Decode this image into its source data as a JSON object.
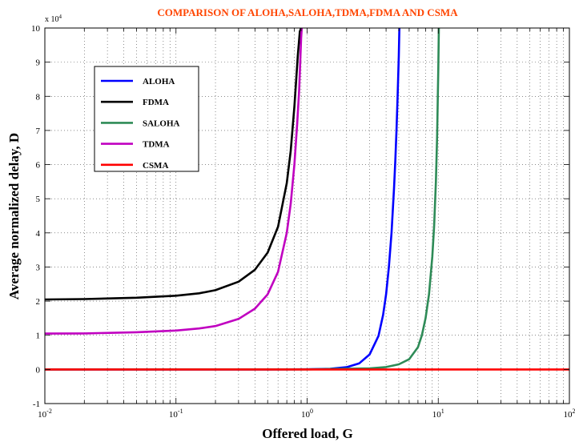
{
  "chart_data": {
    "type": "line",
    "title": "COMPARISON OF ALOHA,SALOHA,TDMA,FDMA AND CSMA",
    "title_color": "#ff4500",
    "xlabel": "Offered load, G",
    "ylabel": "Average normalized delay, D",
    "x_scale": "log",
    "xlim": [
      0.01,
      100
    ],
    "ylim": [
      -10000,
      100000
    ],
    "y_multiplier_label": "x 10",
    "y_multiplier_exp": "4",
    "grid": true,
    "grid_style": "dotted",
    "legend_position": "top-left",
    "x_ticks": [
      {
        "value": 0.01,
        "base": "10",
        "exp": "-2"
      },
      {
        "value": 0.1,
        "base": "10",
        "exp": "-1"
      },
      {
        "value": 1,
        "base": "10",
        "exp": "0"
      },
      {
        "value": 10,
        "base": "10",
        "exp": "1"
      },
      {
        "value": 100,
        "base": "10",
        "exp": "2"
      }
    ],
    "y_ticks": [
      {
        "value": -10000,
        "label": "-1"
      },
      {
        "value": 0,
        "label": "0"
      },
      {
        "value": 10000,
        "label": "1"
      },
      {
        "value": 20000,
        "label": "2"
      },
      {
        "value": 30000,
        "label": "3"
      },
      {
        "value": 40000,
        "label": "4"
      },
      {
        "value": 50000,
        "label": "5"
      },
      {
        "value": 60000,
        "label": "6"
      },
      {
        "value": 70000,
        "label": "7"
      },
      {
        "value": 80000,
        "label": "8"
      },
      {
        "value": 90000,
        "label": "9"
      },
      {
        "value": 100000,
        "label": "10"
      }
    ],
    "series": [
      {
        "name": "ALOHA",
        "color": "#0000ff",
        "x": [
          0.01,
          0.5,
          1.0,
          1.5,
          2.0,
          2.5,
          3.0,
          3.5,
          3.8,
          4.0,
          4.2,
          4.4,
          4.6,
          4.7,
          4.8,
          4.9,
          5.0,
          5.05
        ],
        "y": [
          0,
          3,
          40,
          190,
          650,
          1800,
          4400,
          9800,
          16000,
          22000,
          30000,
          40000,
          53000,
          61000,
          70000,
          80000,
          92000,
          100000
        ]
      },
      {
        "name": "FDMA",
        "color": "#000000",
        "x": [
          0.01,
          0.02,
          0.05,
          0.1,
          0.15,
          0.2,
          0.3,
          0.4,
          0.5,
          0.6,
          0.7,
          0.75,
          0.8,
          0.85,
          0.88,
          0.9
        ],
        "y": [
          20500,
          20600,
          21000,
          21600,
          22300,
          23200,
          25700,
          29200,
          34200,
          41800,
          54600,
          64000,
          77000,
          92000,
          99000,
          100000
        ]
      },
      {
        "name": "SALOHA",
        "color": "#2e8b57",
        "x": [
          0.01,
          1.0,
          3.0,
          4.0,
          5.0,
          6.0,
          7.0,
          7.5,
          8.0,
          8.5,
          9.0,
          9.3,
          9.6,
          9.8,
          10.0,
          10.1
        ],
        "y": [
          0,
          20,
          300,
          700,
          1500,
          3000,
          6500,
          10000,
          15000,
          22000,
          33000,
          42000,
          55000,
          68000,
          88000,
          100000
        ]
      },
      {
        "name": "TDMA",
        "color": "#c000c0",
        "x": [
          0.01,
          0.02,
          0.05,
          0.1,
          0.15,
          0.2,
          0.3,
          0.4,
          0.5,
          0.6,
          0.7,
          0.75,
          0.8,
          0.84,
          0.87,
          0.9,
          0.91
        ],
        "y": [
          10500,
          10550,
          10900,
          11400,
          12000,
          12700,
          14800,
          17800,
          22000,
          28600,
          40000,
          48500,
          60000,
          72000,
          82000,
          97000,
          100000
        ]
      },
      {
        "name": "CSMA",
        "color": "#ff0000",
        "x": [
          0.01,
          100
        ],
        "y": [
          0,
          0
        ]
      }
    ]
  }
}
